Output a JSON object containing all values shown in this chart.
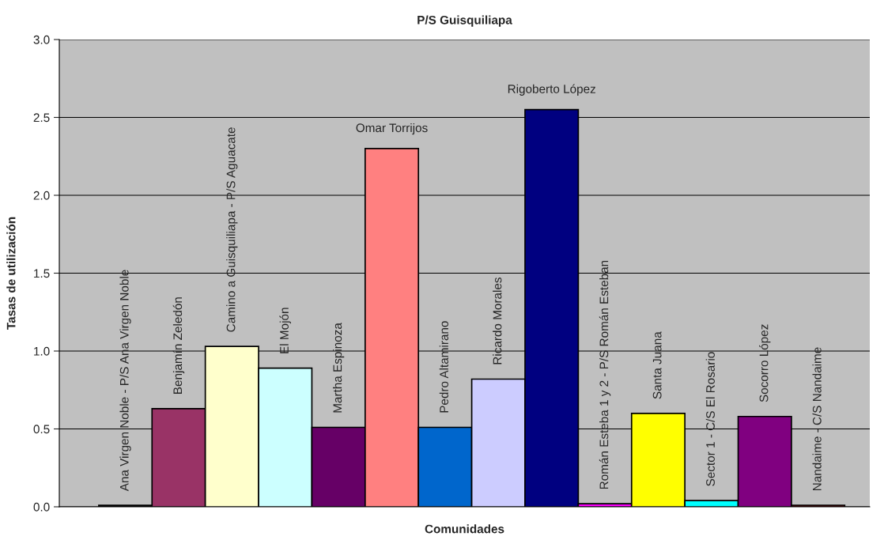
{
  "chart_data": {
    "type": "bar",
    "title": "P/S Guisquiliapa",
    "xlabel": "Comunidades",
    "ylabel": "Tasas de utilización",
    "categories": [
      "Ana Virgen Noble - P/S Ana Virgen Noble",
      "Benjamín Zeledón",
      "Camino a Guisquiliapa - P/S Aguacate",
      "El Mojón",
      "Martha Espinoza",
      "Omar Torrijos",
      "Pedro Altamirano",
      "Ricardo Morales",
      "Rigoberto López",
      "Román Esteba 1 y 2 - P/S Román Esteban",
      "Santa Juana",
      "Sector 1 - C/S El Rosario",
      "Socorro López",
      "Nandaime - C/S Nandaime"
    ],
    "values": [
      0.01,
      0.63,
      1.03,
      0.89,
      0.51,
      2.3,
      0.51,
      0.82,
      2.55,
      0.02,
      0.6,
      0.04,
      0.58,
      0.01
    ],
    "colors": [
      "#000000",
      "#993366",
      "#ffffcc",
      "#ccffff",
      "#660066",
      "#ff8080",
      "#0066cc",
      "#ccccff",
      "#000080",
      "#ff00ff",
      "#ffff00",
      "#00ffff",
      "#800080",
      "#800000"
    ],
    "ylim": [
      0,
      3.0
    ],
    "yticks": [
      {
        "value": 0,
        "label": "0.0"
      },
      0.5,
      {
        "value": 1,
        "label": "1.0"
      },
      1.5,
      {
        "value": 2,
        "label": "2.0"
      },
      2.5,
      {
        "value": 3,
        "label": "3.0"
      }
    ],
    "grid": "y",
    "tick_labels": "y"
  }
}
